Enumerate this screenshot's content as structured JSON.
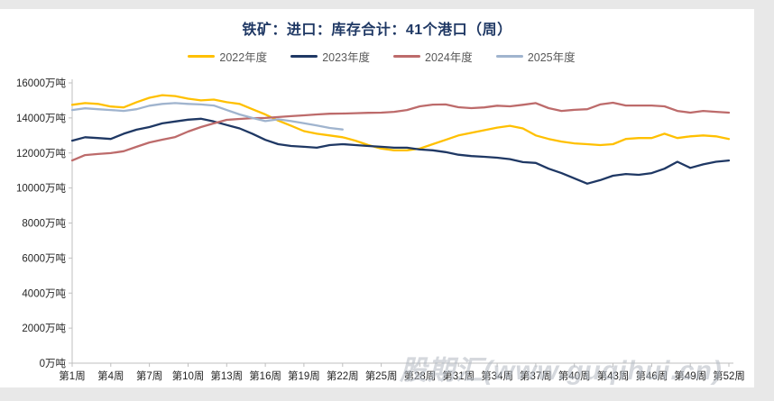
{
  "page": {
    "background": "#E8E8E8",
    "panel_background": "#FFFFFF"
  },
  "chart": {
    "title_color": "#1F3864",
    "axis_color": "#BFBFBF",
    "tick_label_color": "#262626",
    "legend_label_color": "#595959"
  },
  "watermark": {
    "text": "股期汇(www.guqihui.cn)",
    "color": "#B3BAC3"
  },
  "chart_data": {
    "type": "line",
    "title": "铁矿：进口：库存合计：41个港口（周）",
    "xlabel": "",
    "ylabel": "",
    "grid": false,
    "legend_position": "top",
    "x_unit": "周",
    "x_range": [
      1,
      52
    ],
    "ylim": [
      0,
      16000
    ],
    "y_ticks": [
      0,
      2000,
      4000,
      6000,
      8000,
      10000,
      12000,
      14000,
      16000
    ],
    "y_tick_labels": [
      "0万吨",
      "2000万吨",
      "4000万吨",
      "6000万吨",
      "8000万吨",
      "10000万吨",
      "12000万吨",
      "14000万吨",
      "16000万吨"
    ],
    "x_tick_weeks": [
      1,
      4,
      7,
      10,
      13,
      16,
      19,
      22,
      25,
      28,
      31,
      34,
      37,
      40,
      43,
      46,
      49,
      52
    ],
    "x_tick_labels": [
      "第1周",
      "第4周",
      "第7周",
      "第10周",
      "第13周",
      "第16周",
      "第19周",
      "第22周",
      "第25周",
      "第28周",
      "第31周",
      "第34周",
      "第37周",
      "第40周",
      "第43周",
      "第46周",
      "第49周",
      "第52周"
    ],
    "series": [
      {
        "name": "2022年度",
        "color": "#FFC000",
        "values": [
          14750,
          14850,
          14800,
          14650,
          14600,
          14900,
          15150,
          15300,
          15250,
          15100,
          15000,
          15050,
          14900,
          14800,
          14500,
          14200,
          13850,
          13550,
          13250,
          13100,
          13000,
          12900,
          12700,
          12450,
          12250,
          12150,
          12150,
          12250,
          12500,
          12750,
          13000,
          13150,
          13300,
          13450,
          13550,
          13400,
          13000,
          12800,
          12650,
          12550,
          12500,
          12450,
          12500,
          12800,
          12850,
          12850,
          13100,
          12850,
          12950,
          13000,
          12950,
          12800
        ]
      },
      {
        "name": "2023年度",
        "color": "#1F3864",
        "values": [
          12700,
          12900,
          12850,
          12800,
          13100,
          13330,
          13480,
          13690,
          13800,
          13900,
          13950,
          13800,
          13600,
          13400,
          13100,
          12750,
          12500,
          12400,
          12350,
          12300,
          12450,
          12500,
          12450,
          12400,
          12350,
          12300,
          12300,
          12200,
          12150,
          12050,
          11900,
          11820,
          11780,
          11730,
          11650,
          11480,
          11430,
          11100,
          10850,
          10550,
          10250,
          10450,
          10700,
          10800,
          10750,
          10850,
          11100,
          11500,
          11150,
          11350,
          11500,
          11570
        ]
      },
      {
        "name": "2024年度",
        "color": "#BD6B6B",
        "values": [
          11570,
          11880,
          11940,
          11990,
          12100,
          12350,
          12600,
          12760,
          12910,
          13220,
          13480,
          13690,
          13890,
          13940,
          13990,
          14000,
          14050,
          14100,
          14150,
          14200,
          14240,
          14250,
          14270,
          14290,
          14300,
          14350,
          14450,
          14660,
          14760,
          14770,
          14610,
          14560,
          14600,
          14700,
          14660,
          14750,
          14850,
          14560,
          14400,
          14460,
          14500,
          14770,
          14870,
          14710,
          14710,
          14710,
          14660,
          14400,
          14300,
          14400,
          14350,
          14300
        ]
      },
      {
        "name": "2025年度",
        "color": "#A0B4CE",
        "values": [
          14450,
          14550,
          14500,
          14450,
          14400,
          14500,
          14700,
          14800,
          14850,
          14800,
          14770,
          14710,
          14450,
          14200,
          14000,
          13820,
          13920,
          13820,
          13700,
          13570,
          13430,
          13340
        ]
      }
    ]
  }
}
